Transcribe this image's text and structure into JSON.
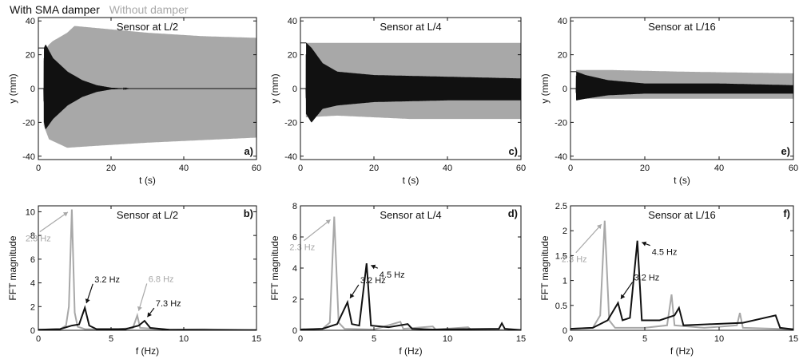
{
  "legend": [
    {
      "label": "With SMA damper",
      "color": "#111111"
    },
    {
      "label": "Without damper",
      "color": "#a8a8a8"
    }
  ],
  "chart_data": [
    {
      "type": "line",
      "panel": "a)",
      "title": "Sensor at L/2",
      "xlabel": "t (s)",
      "ylabel": "y (mm)",
      "xlim": [
        0,
        60
      ],
      "ylim": [
        -42,
        42
      ],
      "xticks": [
        0,
        20,
        40,
        60
      ],
      "yticks": [
        -40,
        -20,
        0,
        20,
        40
      ],
      "series": [
        {
          "name": "Without damper",
          "color": "#a8a8a8",
          "envelope": [
            [
              0,
              0
            ],
            [
              1.5,
              0
            ],
            [
              1.6,
              22
            ],
            [
              3,
              26
            ],
            [
              4,
              28
            ],
            [
              8,
              33
            ],
            [
              10,
              37
            ],
            [
              15,
              36
            ],
            [
              30,
              33
            ],
            [
              45,
              31
            ],
            [
              60,
              30
            ]
          ],
          "envelope_lower": [
            [
              0,
              0
            ],
            [
              1.5,
              0
            ],
            [
              1.6,
              -22
            ],
            [
              3,
              -30
            ],
            [
              8,
              -35
            ],
            [
              15,
              -34
            ],
            [
              30,
              -32
            ],
            [
              60,
              -29
            ]
          ]
        },
        {
          "name": "With SMA damper",
          "color": "#111111",
          "envelope": [
            [
              0,
              0
            ],
            [
              1.5,
              0
            ],
            [
              1.6,
              24
            ],
            [
              2,
              26
            ],
            [
              4,
              18
            ],
            [
              8,
              10
            ],
            [
              12,
              5
            ],
            [
              16,
              2
            ],
            [
              20,
              0.5
            ],
            [
              25,
              0
            ],
            [
              60,
              0
            ]
          ],
          "envelope_lower": [
            [
              0,
              0
            ],
            [
              1.5,
              0
            ],
            [
              1.6,
              -20
            ],
            [
              2,
              -24
            ],
            [
              4,
              -18
            ],
            [
              8,
              -10
            ],
            [
              12,
              -5
            ],
            [
              16,
              -2
            ],
            [
              20,
              -0.5
            ],
            [
              25,
              0
            ],
            [
              60,
              0
            ]
          ]
        }
      ]
    },
    {
      "type": "line",
      "panel": "c)",
      "title": "Sensor at L/4",
      "xlabel": "t (s)",
      "ylabel": "y (mm)",
      "xlim": [
        0,
        60
      ],
      "ylim": [
        -42,
        42
      ],
      "xticks": [
        0,
        20,
        40,
        60
      ],
      "yticks": [
        -40,
        -20,
        0,
        20,
        40
      ],
      "series": [
        {
          "name": "Without damper",
          "color": "#a8a8a8",
          "envelope": [
            [
              0,
              0
            ],
            [
              1.5,
              0
            ],
            [
              1.6,
              27
            ],
            [
              10,
              27
            ],
            [
              30,
              27
            ],
            [
              60,
              27
            ]
          ],
          "envelope_lower": [
            [
              0,
              0
            ],
            [
              1.5,
              0
            ],
            [
              1.6,
              -17
            ],
            [
              10,
              -16
            ],
            [
              30,
              -18
            ],
            [
              60,
              -18
            ]
          ]
        },
        {
          "name": "With SMA damper",
          "color": "#111111",
          "envelope": [
            [
              0,
              0
            ],
            [
              1.5,
              0
            ],
            [
              1.6,
              27
            ],
            [
              3,
              24
            ],
            [
              6,
              15
            ],
            [
              10,
              10
            ],
            [
              20,
              8
            ],
            [
              40,
              7
            ],
            [
              60,
              6
            ]
          ],
          "envelope_lower": [
            [
              0,
              0
            ],
            [
              1.5,
              0
            ],
            [
              1.6,
              -15
            ],
            [
              3,
              -20
            ],
            [
              6,
              -12
            ],
            [
              10,
              -10
            ],
            [
              20,
              -8
            ],
            [
              40,
              -7
            ],
            [
              60,
              -7
            ]
          ]
        }
      ]
    },
    {
      "type": "line",
      "panel": "e)",
      "title": "Sensor at L/16",
      "xlabel": "t (s)",
      "ylabel": "y (mm)",
      "xlim": [
        0,
        60
      ],
      "ylim": [
        -42,
        42
      ],
      "xticks": [
        0,
        20,
        40,
        60
      ],
      "yticks": [
        -40,
        -20,
        0,
        20,
        40
      ],
      "series": [
        {
          "name": "Without damper",
          "color": "#a8a8a8",
          "envelope": [
            [
              0,
              0
            ],
            [
              1.5,
              0
            ],
            [
              1.6,
              11
            ],
            [
              10,
              11
            ],
            [
              30,
              10
            ],
            [
              60,
              9
            ]
          ],
          "envelope_lower": [
            [
              0,
              0
            ],
            [
              1.5,
              0
            ],
            [
              1.6,
              -6
            ],
            [
              10,
              -6
            ],
            [
              30,
              -6
            ],
            [
              60,
              -6
            ]
          ]
        },
        {
          "name": "With SMA damper",
          "color": "#111111",
          "envelope": [
            [
              0,
              0
            ],
            [
              1.5,
              0
            ],
            [
              1.6,
              10
            ],
            [
              4,
              8
            ],
            [
              10,
              5
            ],
            [
              20,
              3
            ],
            [
              40,
              3
            ],
            [
              60,
              2
            ]
          ],
          "envelope_lower": [
            [
              0,
              0
            ],
            [
              1.5,
              0
            ],
            [
              1.6,
              -7
            ],
            [
              4,
              -6
            ],
            [
              10,
              -4
            ],
            [
              20,
              -3
            ],
            [
              40,
              -3
            ],
            [
              60,
              -3
            ]
          ]
        }
      ]
    },
    {
      "type": "line",
      "panel": "b)",
      "title": "Sensor at L/2",
      "xlabel": "f (Hz)",
      "ylabel": "FFT magnitude",
      "xlim": [
        0,
        15
      ],
      "ylim": [
        0,
        10.5
      ],
      "xticks": [
        0,
        5,
        10,
        15
      ],
      "yticks": [
        0,
        2,
        4,
        6,
        8,
        10
      ],
      "series": [
        {
          "name": "Without damper",
          "color": "#a8a8a8",
          "points": [
            [
              0,
              0.05
            ],
            [
              1.5,
              0.1
            ],
            [
              1.9,
              0.4
            ],
            [
              2.1,
              2.0
            ],
            [
              2.3,
              10.2
            ],
            [
              2.5,
              1.5
            ],
            [
              2.7,
              0.3
            ],
            [
              3.2,
              0.1
            ],
            [
              5,
              0.05
            ],
            [
              6.5,
              0.2
            ],
            [
              6.8,
              1.25
            ],
            [
              7.0,
              0.2
            ],
            [
              9,
              0.05
            ],
            [
              11.4,
              0.08
            ],
            [
              15,
              0.02
            ]
          ]
        },
        {
          "name": "With SMA damper",
          "color": "#111111",
          "points": [
            [
              0,
              0.05
            ],
            [
              1.5,
              0.1
            ],
            [
              2.3,
              0.4
            ],
            [
              2.8,
              0.5
            ],
            [
              3.2,
              1.9
            ],
            [
              3.5,
              0.4
            ],
            [
              4,
              0.1
            ],
            [
              6,
              0.1
            ],
            [
              6.9,
              0.4
            ],
            [
              7.3,
              0.8
            ],
            [
              7.7,
              0.2
            ],
            [
              9,
              0.05
            ],
            [
              12,
              0.03
            ],
            [
              15,
              0.02
            ]
          ]
        }
      ],
      "annotations": [
        {
          "text": "2.3 Hz",
          "color": "#a8a8a8",
          "x": 2.3,
          "y": 10.2
        },
        {
          "text": "3.2 Hz",
          "color": "#111111",
          "x": 3.2,
          "y": 1.9
        },
        {
          "text": "6.8 Hz",
          "color": "#a8a8a8",
          "x": 6.8,
          "y": 1.25
        },
        {
          "text": "7.3 Hz",
          "color": "#111111",
          "x": 7.3,
          "y": 0.8
        }
      ]
    },
    {
      "type": "line",
      "panel": "d)",
      "title": "Sensor at L/4",
      "xlabel": "f (Hz)",
      "ylabel": "FFT magnitude",
      "xlim": [
        0,
        15
      ],
      "ylim": [
        0,
        8
      ],
      "xticks": [
        0,
        5,
        10,
        15
      ],
      "yticks": [
        0,
        2,
        4,
        6,
        8
      ],
      "series": [
        {
          "name": "Without damper",
          "color": "#a8a8a8",
          "points": [
            [
              0,
              0.05
            ],
            [
              1.5,
              0.1
            ],
            [
              2.0,
              0.5
            ],
            [
              2.3,
              7.3
            ],
            [
              2.6,
              0.5
            ],
            [
              3.0,
              0.1
            ],
            [
              5,
              0.05
            ],
            [
              6.8,
              0.55
            ],
            [
              7.0,
              0.1
            ],
            [
              9.0,
              0.25
            ],
            [
              9.2,
              0.05
            ],
            [
              11.4,
              0.2
            ],
            [
              11.6,
              0.05
            ],
            [
              15,
              0.02
            ]
          ]
        },
        {
          "name": "With SMA damper",
          "color": "#111111",
          "points": [
            [
              0,
              0.05
            ],
            [
              1.5,
              0.1
            ],
            [
              2.5,
              0.4
            ],
            [
              3.2,
              1.8
            ],
            [
              3.5,
              0.4
            ],
            [
              4.0,
              0.3
            ],
            [
              4.5,
              4.3
            ],
            [
              4.8,
              0.3
            ],
            [
              6,
              0.2
            ],
            [
              7.3,
              0.4
            ],
            [
              7.6,
              0.1
            ],
            [
              9,
              0.05
            ],
            [
              13.5,
              0.1
            ],
            [
              13.7,
              0.45
            ],
            [
              13.9,
              0.1
            ],
            [
              15,
              0.02
            ]
          ]
        }
      ],
      "annotations": [
        {
          "text": "2.3 Hz",
          "color": "#a8a8a8",
          "x": 2.3,
          "y": 7.3
        },
        {
          "text": "4.5 Hz",
          "color": "#111111",
          "x": 4.5,
          "y": 4.3
        },
        {
          "text": "3.2 Hz",
          "color": "#111111",
          "x": 3.2,
          "y": 1.8
        }
      ]
    },
    {
      "type": "line",
      "panel": "f)",
      "title": "Sensor at L/16",
      "xlabel": "f (Hz)",
      "ylabel": "FFT magnitude",
      "xlim": [
        0,
        15
      ],
      "ylim": [
        0,
        2.5
      ],
      "xticks": [
        0,
        5,
        10,
        15
      ],
      "yticks": [
        0,
        0.5,
        1,
        1.5,
        2,
        2.5
      ],
      "series": [
        {
          "name": "Without damper",
          "color": "#a8a8a8",
          "points": [
            [
              0,
              0.03
            ],
            [
              1.5,
              0.05
            ],
            [
              2.0,
              0.3
            ],
            [
              2.3,
              2.2
            ],
            [
              2.6,
              0.2
            ],
            [
              3.0,
              0.05
            ],
            [
              5,
              0.05
            ],
            [
              6.5,
              0.1
            ],
            [
              6.8,
              0.72
            ],
            [
              7.0,
              0.1
            ],
            [
              9,
              0.05
            ],
            [
              11.2,
              0.1
            ],
            [
              11.4,
              0.35
            ],
            [
              11.6,
              0.05
            ],
            [
              15,
              0.02
            ]
          ]
        },
        {
          "name": "With SMA damper",
          "color": "#111111",
          "points": [
            [
              0,
              0.03
            ],
            [
              1.5,
              0.05
            ],
            [
              2.5,
              0.2
            ],
            [
              3.2,
              0.55
            ],
            [
              3.5,
              0.2
            ],
            [
              4.0,
              0.25
            ],
            [
              4.5,
              1.8
            ],
            [
              4.8,
              0.2
            ],
            [
              6,
              0.2
            ],
            [
              7.0,
              0.3
            ],
            [
              7.3,
              0.45
            ],
            [
              7.6,
              0.1
            ],
            [
              9.2,
              0.12
            ],
            [
              11.6,
              0.15
            ],
            [
              13.8,
              0.3
            ],
            [
              14.1,
              0.05
            ],
            [
              15,
              0.02
            ]
          ]
        }
      ],
      "annotations": [
        {
          "text": "2.3 Hz",
          "color": "#a8a8a8",
          "x": 2.3,
          "y": 2.2
        },
        {
          "text": "4.5 Hz",
          "color": "#111111",
          "x": 4.5,
          "y": 1.8
        },
        {
          "text": "3.2 Hz",
          "color": "#111111",
          "x": 3.2,
          "y": 0.55
        }
      ]
    }
  ]
}
